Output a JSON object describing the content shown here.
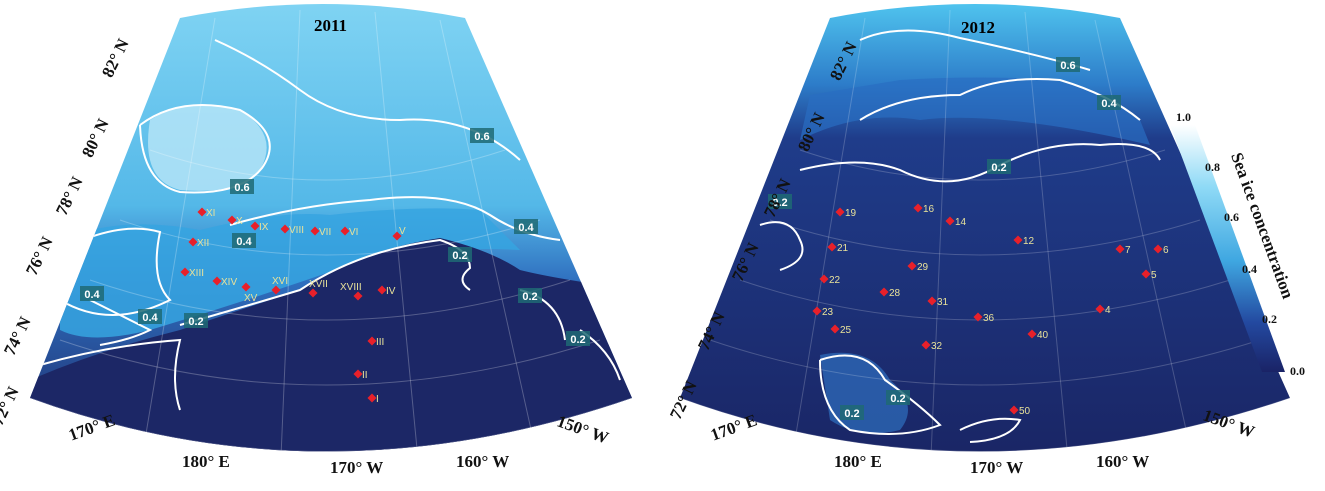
{
  "panels": [
    {
      "id": "2011",
      "title": "2011",
      "lat_labels": [
        "82° N",
        "80° N",
        "78° N",
        "76° N",
        "74° N",
        "72° N"
      ],
      "lon_labels": [
        "170° E",
        "180° E",
        "170° W",
        "160° W",
        "150° W"
      ],
      "contour_labels": [
        "0.6",
        "0.6",
        "0.4",
        "0.4",
        "0.4",
        "0.4",
        "0.2",
        "0.2",
        "0.2",
        "0.2"
      ],
      "stations": [
        "XI",
        "X",
        "IX",
        "VIII",
        "VII",
        "VI",
        "V",
        "XII",
        "XIII",
        "XIV",
        "XV",
        "XVI",
        "XVII",
        "XVIII",
        "IV",
        "III",
        "II",
        "I"
      ]
    },
    {
      "id": "2012",
      "title": "2012",
      "lat_labels": [
        "82° N",
        "80° N",
        "78° N",
        "76° N",
        "74° N",
        "72° N"
      ],
      "lon_labels": [
        "170° E",
        "180° E",
        "170° W",
        "160° W",
        "150° W"
      ],
      "contour_labels": [
        "0.6",
        "0.4",
        "0.2",
        "0.2",
        "0.2",
        "0.2"
      ],
      "stations": [
        "19",
        "16",
        "14",
        "12",
        "7",
        "6",
        "21",
        "29",
        "5",
        "22",
        "28",
        "31",
        "4",
        "23",
        "36",
        "40",
        "25",
        "32",
        "50"
      ]
    }
  ],
  "colorbar": {
    "title": "Sea ice  concentration",
    "ticks": [
      "1.0",
      "0.8",
      "0.6",
      "0.4",
      "0.2",
      "0.0"
    ],
    "colors": {
      "low": "#1c2766",
      "mid": "#2f6fbf",
      "high": "#4fc3ee",
      "max": "#ffffff"
    }
  },
  "station_color": "#e8202a",
  "station_label_color": "#e9e29a"
}
